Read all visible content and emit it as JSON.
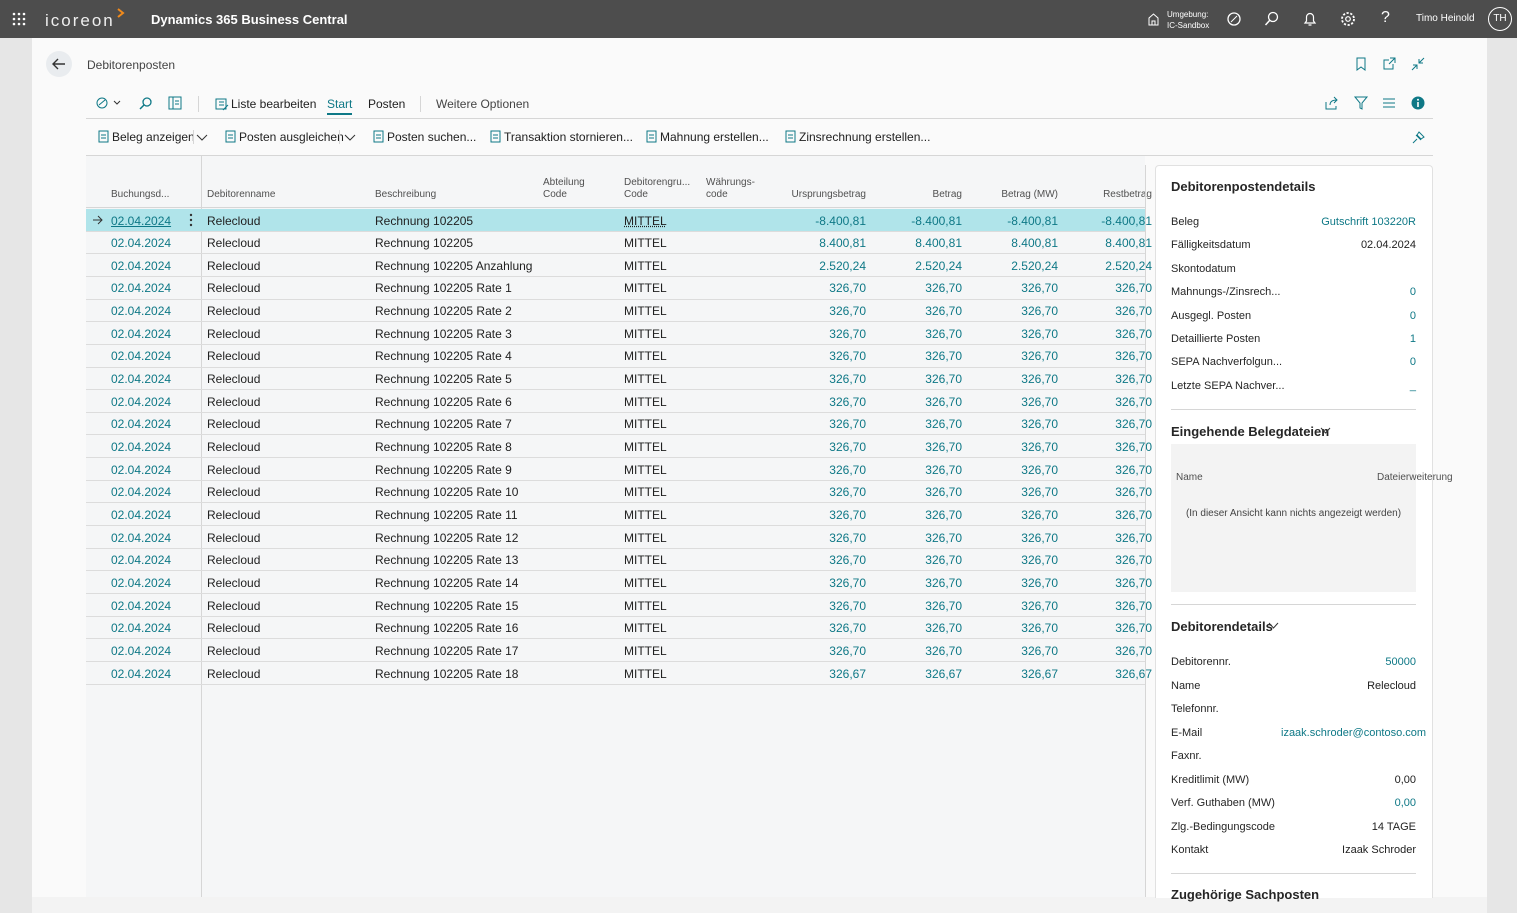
{
  "topbar": {
    "brand": "icoreon",
    "app_title": "Dynamics 365 Business Central",
    "env_label": "Umgebung:",
    "env_name": "IC-Sandbox",
    "user_name": "Timo Heinold",
    "user_initials": "TH"
  },
  "page": {
    "title": "Debitorenposten"
  },
  "action_bar": {
    "edit_list": "Liste bearbeiten",
    "tabs": [
      "Start",
      "Posten"
    ],
    "more": "Weitere Optionen",
    "actions": [
      "Beleg anzeigen",
      "Posten ausgleichen",
      "Posten suchen...",
      "Transaktion stornieren...",
      "Mahnung erstellen...",
      "Zinsrechnung erstellen..."
    ]
  },
  "table": {
    "columns": [
      "Buchungsd...",
      "Debitorenname",
      "Beschreibung",
      "Abteilung\nCode",
      "Debitorengru...\nCode",
      "Währungs-\ncode",
      "Ursprungsbetrag",
      "Betrag",
      "Betrag (MW)",
      "Restbetrag"
    ],
    "rows": [
      {
        "date": "02.04.2024",
        "customer": "Relecloud",
        "description": "Rechnung 102205",
        "group": "MITTEL",
        "original": "-8.400,81",
        "amount": "-8.400,81",
        "amount_lcy": "-8.400,81",
        "remaining": "-8.400,81"
      },
      {
        "date": "02.04.2024",
        "customer": "Relecloud",
        "description": "Rechnung 102205",
        "group": "MITTEL",
        "original": "8.400,81",
        "amount": "8.400,81",
        "amount_lcy": "8.400,81",
        "remaining": "8.400,81"
      },
      {
        "date": "02.04.2024",
        "customer": "Relecloud",
        "description": "Rechnung 102205 Anzahlung",
        "group": "MITTEL",
        "original": "2.520,24",
        "amount": "2.520,24",
        "amount_lcy": "2.520,24",
        "remaining": "2.520,24"
      },
      {
        "date": "02.04.2024",
        "customer": "Relecloud",
        "description": "Rechnung 102205 Rate 1",
        "group": "MITTEL",
        "original": "326,70",
        "amount": "326,70",
        "amount_lcy": "326,70",
        "remaining": "326,70"
      },
      {
        "date": "02.04.2024",
        "customer": "Relecloud",
        "description": "Rechnung 102205 Rate 2",
        "group": "MITTEL",
        "original": "326,70",
        "amount": "326,70",
        "amount_lcy": "326,70",
        "remaining": "326,70"
      },
      {
        "date": "02.04.2024",
        "customer": "Relecloud",
        "description": "Rechnung 102205 Rate 3",
        "group": "MITTEL",
        "original": "326,70",
        "amount": "326,70",
        "amount_lcy": "326,70",
        "remaining": "326,70"
      },
      {
        "date": "02.04.2024",
        "customer": "Relecloud",
        "description": "Rechnung 102205 Rate 4",
        "group": "MITTEL",
        "original": "326,70",
        "amount": "326,70",
        "amount_lcy": "326,70",
        "remaining": "326,70"
      },
      {
        "date": "02.04.2024",
        "customer": "Relecloud",
        "description": "Rechnung 102205 Rate 5",
        "group": "MITTEL",
        "original": "326,70",
        "amount": "326,70",
        "amount_lcy": "326,70",
        "remaining": "326,70"
      },
      {
        "date": "02.04.2024",
        "customer": "Relecloud",
        "description": "Rechnung 102205 Rate 6",
        "group": "MITTEL",
        "original": "326,70",
        "amount": "326,70",
        "amount_lcy": "326,70",
        "remaining": "326,70"
      },
      {
        "date": "02.04.2024",
        "customer": "Relecloud",
        "description": "Rechnung 102205 Rate 7",
        "group": "MITTEL",
        "original": "326,70",
        "amount": "326,70",
        "amount_lcy": "326,70",
        "remaining": "326,70"
      },
      {
        "date": "02.04.2024",
        "customer": "Relecloud",
        "description": "Rechnung 102205 Rate 8",
        "group": "MITTEL",
        "original": "326,70",
        "amount": "326,70",
        "amount_lcy": "326,70",
        "remaining": "326,70"
      },
      {
        "date": "02.04.2024",
        "customer": "Relecloud",
        "description": "Rechnung 102205 Rate 9",
        "group": "MITTEL",
        "original": "326,70",
        "amount": "326,70",
        "amount_lcy": "326,70",
        "remaining": "326,70"
      },
      {
        "date": "02.04.2024",
        "customer": "Relecloud",
        "description": "Rechnung 102205 Rate 10",
        "group": "MITTEL",
        "original": "326,70",
        "amount": "326,70",
        "amount_lcy": "326,70",
        "remaining": "326,70"
      },
      {
        "date": "02.04.2024",
        "customer": "Relecloud",
        "description": "Rechnung 102205 Rate 11",
        "group": "MITTEL",
        "original": "326,70",
        "amount": "326,70",
        "amount_lcy": "326,70",
        "remaining": "326,70"
      },
      {
        "date": "02.04.2024",
        "customer": "Relecloud",
        "description": "Rechnung 102205 Rate 12",
        "group": "MITTEL",
        "original": "326,70",
        "amount": "326,70",
        "amount_lcy": "326,70",
        "remaining": "326,70"
      },
      {
        "date": "02.04.2024",
        "customer": "Relecloud",
        "description": "Rechnung 102205 Rate 13",
        "group": "MITTEL",
        "original": "326,70",
        "amount": "326,70",
        "amount_lcy": "326,70",
        "remaining": "326,70"
      },
      {
        "date": "02.04.2024",
        "customer": "Relecloud",
        "description": "Rechnung 102205 Rate 14",
        "group": "MITTEL",
        "original": "326,70",
        "amount": "326,70",
        "amount_lcy": "326,70",
        "remaining": "326,70"
      },
      {
        "date": "02.04.2024",
        "customer": "Relecloud",
        "description": "Rechnung 102205 Rate 15",
        "group": "MITTEL",
        "original": "326,70",
        "amount": "326,70",
        "amount_lcy": "326,70",
        "remaining": "326,70"
      },
      {
        "date": "02.04.2024",
        "customer": "Relecloud",
        "description": "Rechnung 102205 Rate 16",
        "group": "MITTEL",
        "original": "326,70",
        "amount": "326,70",
        "amount_lcy": "326,70",
        "remaining": "326,70"
      },
      {
        "date": "02.04.2024",
        "customer": "Relecloud",
        "description": "Rechnung 102205 Rate 17",
        "group": "MITTEL",
        "original": "326,70",
        "amount": "326,70",
        "amount_lcy": "326,70",
        "remaining": "326,70"
      },
      {
        "date": "02.04.2024",
        "customer": "Relecloud",
        "description": "Rechnung 102205 Rate 18",
        "group": "MITTEL",
        "original": "326,67",
        "amount": "326,67",
        "amount_lcy": "326,67",
        "remaining": "326,67"
      }
    ]
  },
  "factbox": {
    "title": "Debitorenpostendetails",
    "fields": [
      {
        "label": "Beleg",
        "value": "Gutschrift 103220R",
        "link": true
      },
      {
        "label": "Fälligkeitsdatum",
        "value": "02.04.2024"
      },
      {
        "label": "Skontodatum"
      },
      {
        "label": "Mahnungs-/Zinsrech...",
        "value": "0",
        "link": true
      },
      {
        "label": "Ausgegl. Posten",
        "value": "0",
        "link": true
      },
      {
        "label": "Detaillierte Posten",
        "value": "1",
        "link": true
      },
      {
        "label": "SEPA Nachverfolgun...",
        "value": "0",
        "link": true
      },
      {
        "label": "Letzte SEPA Nachver...",
        "value": "_",
        "link": true
      }
    ],
    "documents": {
      "title": "Eingehende Belegdateien",
      "columns": [
        "Name",
        "Dateierweiterung"
      ],
      "empty": "(In dieser Ansicht kann nichts angezeigt werden)"
    },
    "customer": {
      "title": "Debitorendetails",
      "fields": [
        {
          "label": "Debitorennr.",
          "value": "50000",
          "link": true
        },
        {
          "label": "Name",
          "value": "Relecloud"
        },
        {
          "label": "Telefonnr."
        },
        {
          "label": "E-Mail",
          "value": "izaak.schroder@contoso.com",
          "link": true
        },
        {
          "label": "Faxnr."
        },
        {
          "label": "Kreditlimit (MW)",
          "value": "0,00"
        },
        {
          "label": "Verf. Guthaben (MW)",
          "value": "0,00",
          "link": true
        },
        {
          "label": "Zlg.-Bedingungscode",
          "value": "14 TAGE"
        },
        {
          "label": "Kontakt",
          "value": "Izaak Schroder"
        }
      ]
    },
    "related": {
      "title": "Zugehörige Sachposten"
    }
  }
}
